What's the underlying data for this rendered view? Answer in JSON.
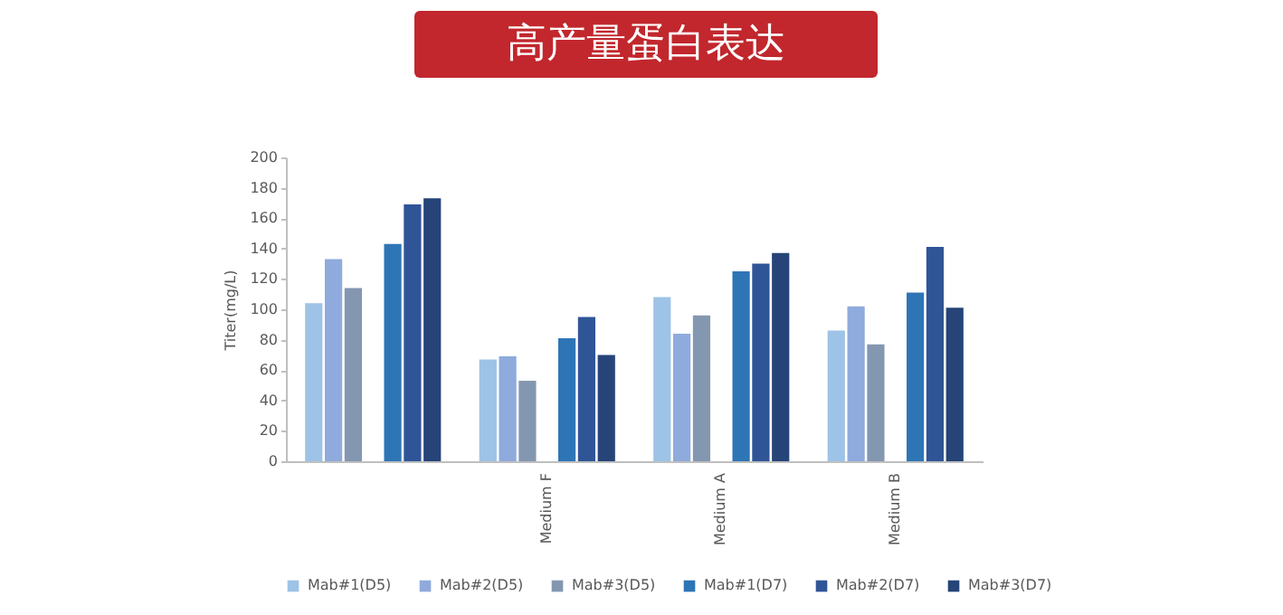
{
  "chart_data": {
    "type": "bar",
    "title": "高产量蛋白表达",
    "ylabel": "Titer(mg/L)",
    "categories": [
      null,
      "Medium F",
      "Medium A",
      "Medium B"
    ],
    "series": [
      {
        "name": "Mab#1(D5)",
        "color": "#9dc3e6",
        "values": [
          104,
          67,
          108,
          86
        ]
      },
      {
        "name": "Mab#2(D5)",
        "color": "#8faadc",
        "values": [
          133,
          69,
          84,
          102
        ]
      },
      {
        "name": "Mab#3(D5)",
        "color": "#8497b0",
        "values": [
          114,
          53,
          96,
          77
        ]
      },
      {
        "name": "Mab#1(D7)",
        "color": "#2e75b6",
        "values": [
          143,
          81,
          125,
          111
        ]
      },
      {
        "name": "Mab#2(D7)",
        "color": "#2f5597",
        "values": [
          169,
          95,
          130,
          141
        ]
      },
      {
        "name": "Mab#3(D7)",
        "color": "#264478",
        "values": [
          173,
          70,
          137,
          101
        ]
      }
    ],
    "ylim": [
      0,
      200
    ],
    "yticks": [
      0,
      20,
      40,
      60,
      80,
      100,
      120,
      140,
      160,
      180,
      200
    ],
    "legend": "bottom"
  }
}
